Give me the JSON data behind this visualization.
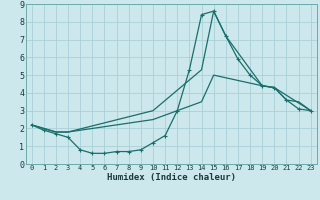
{
  "xlabel": "Humidex (Indice chaleur)",
  "bg_color": "#cce8ec",
  "grid_color": "#aad0d8",
  "line_color": "#1a6e6a",
  "xlim": [
    -0.5,
    23.5
  ],
  "ylim": [
    0,
    9
  ],
  "xticks": [
    0,
    1,
    2,
    3,
    4,
    5,
    6,
    7,
    8,
    9,
    10,
    11,
    12,
    13,
    14,
    15,
    16,
    17,
    18,
    19,
    20,
    21,
    22,
    23
  ],
  "yticks": [
    0,
    1,
    2,
    3,
    4,
    5,
    6,
    7,
    8,
    9
  ],
  "series1_x": [
    0,
    1,
    2,
    3,
    4,
    5,
    6,
    7,
    8,
    9,
    10,
    11,
    12,
    13,
    14,
    15,
    16,
    17,
    18,
    19,
    20,
    21,
    22,
    23
  ],
  "series1_y": [
    2.2,
    1.9,
    1.7,
    1.5,
    0.8,
    0.6,
    0.6,
    0.7,
    0.7,
    0.8,
    1.2,
    1.6,
    3.0,
    5.3,
    8.4,
    8.6,
    7.2,
    5.9,
    5.0,
    4.4,
    4.3,
    3.6,
    3.1,
    3.0
  ],
  "series2_x": [
    0,
    2,
    3,
    10,
    14,
    15,
    16,
    19,
    20,
    21,
    22,
    23
  ],
  "series2_y": [
    2.2,
    1.8,
    1.8,
    3.0,
    5.3,
    8.6,
    7.2,
    4.4,
    4.3,
    3.6,
    3.5,
    3.0
  ],
  "series3_x": [
    0,
    2,
    3,
    10,
    14,
    15,
    19,
    20,
    23
  ],
  "series3_y": [
    2.2,
    1.8,
    1.8,
    2.5,
    3.5,
    5.0,
    4.4,
    4.3,
    3.0
  ]
}
